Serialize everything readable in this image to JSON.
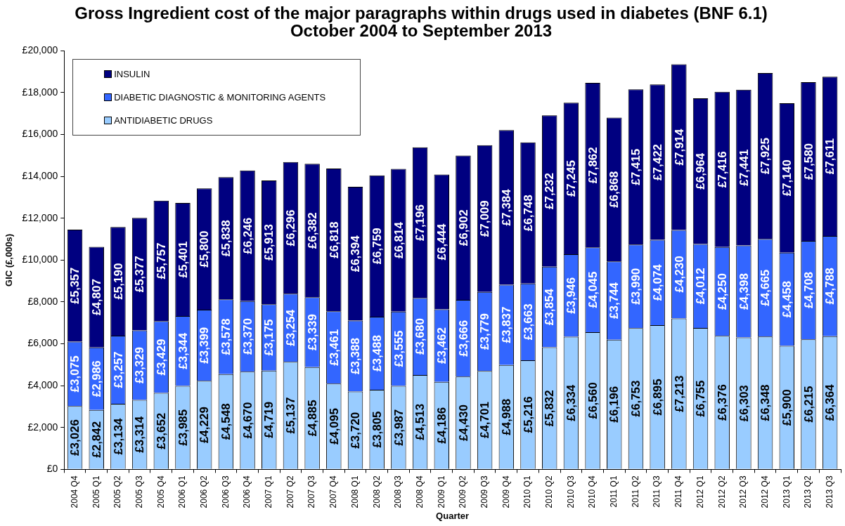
{
  "chart_data": {
    "type": "bar",
    "title": "Gross Ingredient cost of the major paragraphs within drugs used in diabetes (BNF 6.1)",
    "subtitle": "October 2004 to September 2013",
    "xlabel": "Quarter",
    "ylabel": "GIC (£,000s)",
    "categories": [
      "2004 Q4",
      "2005 Q1",
      "2005 Q2",
      "2005 Q3",
      "2005 Q4",
      "2006 Q1",
      "2006 Q2",
      "2006 Q3",
      "2006 Q4",
      "2007 Q1",
      "2007 Q2",
      "2007 Q3",
      "2007 Q4",
      "2008 Q1",
      "2008 Q2",
      "2008 Q3",
      "2008 Q4",
      "2009 Q1",
      "2009 Q2",
      "2009 Q3",
      "2009 Q4",
      "2010 Q1",
      "2010 Q2",
      "2010 Q3",
      "2010 Q4",
      "2011 Q1",
      "2011 Q2",
      "2011 Q3",
      "2011 Q4",
      "2012 Q1",
      "2012 Q2",
      "2012 Q3",
      "2012 Q4",
      "2013 Q1",
      "2013 Q2",
      "2013 Q3"
    ],
    "stacked": true,
    "series": [
      {
        "name": "ANTIDIABETIC DRUGS",
        "color": "#99ccff",
        "values": [
          3026,
          2842,
          3134,
          3314,
          3652,
          3985,
          4229,
          4548,
          4670,
          4719,
          5137,
          4885,
          4095,
          3720,
          3805,
          3987,
          4513,
          4186,
          4430,
          4701,
          4988,
          5216,
          5832,
          6334,
          6560,
          6196,
          6753,
          6895,
          7213,
          6755,
          6376,
          6303,
          6348,
          5900,
          6215,
          6364
        ],
        "value_labels": [
          "£3,026",
          "£2,842",
          "£3,134",
          "£3,314",
          "£3,652",
          "£3,985",
          "£4,229",
          "£4,548",
          "£4,670",
          "£4,719",
          "£5,137",
          "£4,885",
          "£4,095",
          "£3,720",
          "£3,805",
          "£3,987",
          "£4,513",
          "£4,186",
          "£4,430",
          "£4,701",
          "£4,988",
          "£5,216",
          "£5,832",
          "£6,334",
          "£6,560",
          "£6,196",
          "£6,753",
          "£6,895",
          "£7,213",
          "£6,755",
          "£6,376",
          "£6,303",
          "£6,348",
          "£5,900",
          "£6,215",
          "£6,364"
        ]
      },
      {
        "name": "DIABETIC DIAGNOSTIC & MONITORING AGENTS",
        "color": "#3366ff",
        "values": [
          3075,
          2986,
          3257,
          3329,
          3429,
          3344,
          3399,
          3578,
          3370,
          3175,
          3254,
          3339,
          3461,
          3388,
          3488,
          3555,
          3680,
          3462,
          3666,
          3779,
          3837,
          3663,
          3854,
          3946,
          4045,
          3744,
          3990,
          4074,
          4230,
          4012,
          4250,
          4398,
          4665,
          4458,
          4708,
          4788
        ],
        "value_labels": [
          "£3,075",
          "£2,986",
          "£3,257",
          "£3,329",
          "£3,429",
          "£3,344",
          "£3,399",
          "£3,578",
          "£3,370",
          "£3,175",
          "£3,254",
          "£3,339",
          "£3,461",
          "£3,388",
          "£3,488",
          "£3,555",
          "£3,680",
          "£3,462",
          "£3,666",
          "£3,779",
          "£3,837",
          "£3,663",
          "£3,854",
          "£3,946",
          "£4,045",
          "£3,744",
          "£3,990",
          "£4,074",
          "£4,230",
          "£4,012",
          "£4,250",
          "£4,398",
          "£4,665",
          "£4,458",
          "£4,708",
          "£4,788"
        ]
      },
      {
        "name": "INSULIN",
        "color": "#000080",
        "values": [
          5357,
          4807,
          5190,
          5377,
          5757,
          5401,
          5800,
          5838,
          6246,
          5913,
          6296,
          6382,
          6818,
          6394,
          6759,
          6814,
          7196,
          6444,
          6902,
          7009,
          7384,
          6748,
          7232,
          7245,
          7862,
          6868,
          7415,
          7422,
          7914,
          6964,
          7416,
          7441,
          7925,
          7140,
          7580,
          7611
        ],
        "value_labels": [
          "£5,357",
          "£4,807",
          "£5,190",
          "£5,377",
          "£5,757",
          "£5,401",
          "£5,800",
          "£5,838",
          "£6,246",
          "£5,913",
          "£6,296",
          "£6,382",
          "£6,818",
          "£6,394",
          "£6,759",
          "£6,814",
          "£7,196",
          "£6,444",
          "£6,902",
          "£7,009",
          "£7,384",
          "£6,748",
          "£7,232",
          "£7,245",
          "£7,862",
          "£6,868",
          "£7,415",
          "£7,422",
          "£7,914",
          "£6,964",
          "£7,416",
          "£7,441",
          "£7,925",
          "£7,140",
          "£7,580",
          "£7,611"
        ]
      }
    ],
    "ylim": [
      0,
      20000
    ],
    "yticks": [
      {
        "value": 0,
        "label": "£0"
      },
      {
        "value": 2000,
        "label": "£2,000"
      },
      {
        "value": 4000,
        "label": "£4,000"
      },
      {
        "value": 6000,
        "label": "£6,000"
      },
      {
        "value": 8000,
        "label": "£8,000"
      },
      {
        "value": 10000,
        "label": "£10,000"
      },
      {
        "value": 12000,
        "label": "£12,000"
      },
      {
        "value": 14000,
        "label": "£14,000"
      },
      {
        "value": 16000,
        "label": "£16,000"
      },
      {
        "value": 18000,
        "label": "£18,000"
      },
      {
        "value": 20000,
        "label": "£20,000"
      }
    ],
    "grid": false,
    "legend": "top left"
  }
}
